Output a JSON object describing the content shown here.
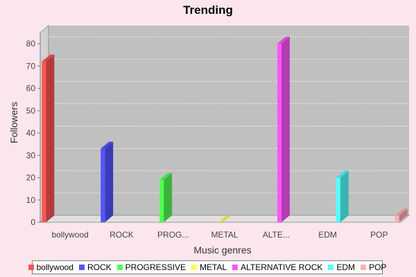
{
  "chart_data": {
    "type": "bar",
    "title": "Trending",
    "xlabel": "Music genres",
    "ylabel": "Followers",
    "categories": [
      "bollywood",
      "ROCK",
      "PROG...",
      "METAL",
      "ALTE...",
      "EDM",
      "POP"
    ],
    "yticks": [
      0,
      10,
      20,
      30,
      40,
      50,
      60,
      70,
      80
    ],
    "ylim": [
      0,
      85
    ],
    "grid": true,
    "legend_position": "bottom",
    "series": [
      {
        "name": "bollywood",
        "color": "#ff5555",
        "category": "bollywood",
        "value": 72
      },
      {
        "name": "ROCK",
        "color": "#5555ff",
        "category": "ROCK",
        "value": 33
      },
      {
        "name": "PROGRESSIVE",
        "color": "#55ff55",
        "category": "PROG...",
        "value": 19
      },
      {
        "name": "METAL",
        "color": "#ffff55",
        "category": "METAL",
        "value": 0
      },
      {
        "name": "ALTERNATIVE ROCK",
        "color": "#ff55ff",
        "category": "ALTE...",
        "value": 80
      },
      {
        "name": "EDM",
        "color": "#55ffff",
        "category": "EDM",
        "value": 20
      },
      {
        "name": "POP",
        "color": "#ffafaf",
        "category": "POP",
        "value": 3
      }
    ]
  }
}
